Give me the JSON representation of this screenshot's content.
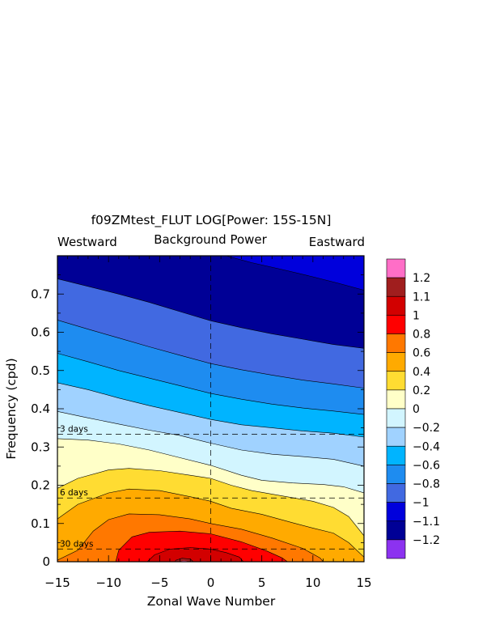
{
  "chart_data": {
    "type": "filled-contour",
    "title": "f09ZMtest_FLUT LOG[Power: 15S-15N]",
    "subtitle_center": "Background Power",
    "subtitle_left": "Westward",
    "subtitle_right": "Eastward",
    "xlabel": "Zonal Wave Number",
    "ylabel": "Frequency (cpd)",
    "xlim": [
      -15,
      15
    ],
    "ylim": [
      0,
      0.8
    ],
    "x_ticks": [
      -15,
      -10,
      -5,
      0,
      5,
      10,
      15
    ],
    "x_tick_labels": [
      "−15",
      "−10",
      "−5",
      "0",
      "5",
      "10",
      "15"
    ],
    "y_ticks": [
      0,
      0.1,
      0.2,
      0.3,
      0.4,
      0.5,
      0.6,
      0.7
    ],
    "y_tick_labels": [
      "0",
      "0.1",
      "0.2",
      "0.3",
      "0.4",
      "0.5",
      "0.6",
      "0.7"
    ],
    "period_lines": [
      {
        "label": "3 days",
        "freq": 0.3333
      },
      {
        "label": "6 days",
        "freq": 0.1667
      },
      {
        "label": "30 days",
        "freq": 0.0333
      }
    ],
    "vertical_line_x": 0,
    "contour_boundaries": [
      {
        "level": 1.1,
        "points": [
          [
            -3.5,
            0
          ],
          [
            -3.4,
            0.004
          ],
          [
            -2.8,
            0.009
          ],
          [
            -2.0,
            0.007
          ],
          [
            -1.7,
            0
          ]
        ]
      },
      {
        "level": 1.0,
        "points": [
          [
            -6.2,
            0
          ],
          [
            -5.5,
            0.018
          ],
          [
            -4.0,
            0.033
          ],
          [
            -2.0,
            0.037
          ],
          [
            0,
            0.033
          ],
          [
            1.5,
            0.024
          ],
          [
            2.8,
            0.012
          ],
          [
            3.2,
            0
          ]
        ]
      },
      {
        "level": 0.8,
        "points": [
          [
            -9.3,
            0
          ],
          [
            -9.0,
            0.03
          ],
          [
            -7.7,
            0.065
          ],
          [
            -6.0,
            0.077
          ],
          [
            -3.0,
            0.08
          ],
          [
            0,
            0.073
          ],
          [
            3.0,
            0.052
          ],
          [
            5.5,
            0.028
          ],
          [
            7.0,
            0.01
          ],
          [
            7.5,
            0
          ]
        ]
      },
      {
        "level": 0.6,
        "points": [
          [
            -15,
            0.004
          ],
          [
            -13.0,
            0.03
          ],
          [
            -11.5,
            0.08
          ],
          [
            -10.0,
            0.11
          ],
          [
            -8.0,
            0.125
          ],
          [
            -5.0,
            0.123
          ],
          [
            -2.0,
            0.112
          ],
          [
            0,
            0.1
          ],
          [
            3.0,
            0.085
          ],
          [
            6.0,
            0.062
          ],
          [
            9.0,
            0.035
          ],
          [
            10.7,
            0.01
          ],
          [
            11.0,
            0
          ]
        ]
      },
      {
        "level": 0.4,
        "points": [
          [
            -15,
            0.112
          ],
          [
            -13.0,
            0.15
          ],
          [
            -10.0,
            0.18
          ],
          [
            -8.0,
            0.19
          ],
          [
            -5.0,
            0.186
          ],
          [
            -2.0,
            0.17
          ],
          [
            0,
            0.158
          ],
          [
            2.0,
            0.14
          ],
          [
            5.0,
            0.124
          ],
          [
            8.0,
            0.102
          ],
          [
            10.0,
            0.088
          ],
          [
            12.0,
            0.075
          ],
          [
            13.5,
            0.05
          ],
          [
            15,
            0.012
          ]
        ]
      },
      {
        "level": 0.2,
        "points": [
          [
            -15,
            0.192
          ],
          [
            -13.0,
            0.218
          ],
          [
            -10.0,
            0.24
          ],
          [
            -8.0,
            0.244
          ],
          [
            -5.0,
            0.238
          ],
          [
            -2.0,
            0.226
          ],
          [
            0,
            0.218
          ],
          [
            2.0,
            0.2
          ],
          [
            4.0,
            0.186
          ],
          [
            7.0,
            0.172
          ],
          [
            10.0,
            0.158
          ],
          [
            12.0,
            0.142
          ],
          [
            13.5,
            0.118
          ],
          [
            15,
            0.068
          ]
        ]
      },
      {
        "level": 0.0,
        "points": [
          [
            -15,
            0.322
          ],
          [
            -12.0,
            0.318
          ],
          [
            -9.0,
            0.308
          ],
          [
            -6.0,
            0.292
          ],
          [
            -3.0,
            0.272
          ],
          [
            0,
            0.252
          ],
          [
            3.0,
            0.226
          ],
          [
            5.0,
            0.213
          ],
          [
            8.0,
            0.206
          ],
          [
            11.0,
            0.202
          ],
          [
            13.0,
            0.196
          ],
          [
            15,
            0.18
          ]
        ]
      },
      {
        "level": -0.2,
        "points": [
          [
            -15,
            0.393
          ],
          [
            -12.0,
            0.376
          ],
          [
            -9.0,
            0.36
          ],
          [
            -6.0,
            0.344
          ],
          [
            -3.0,
            0.33
          ],
          [
            0,
            0.31
          ],
          [
            3.0,
            0.292
          ],
          [
            6.0,
            0.281
          ],
          [
            9.0,
            0.275
          ],
          [
            12.0,
            0.268
          ],
          [
            15,
            0.25
          ]
        ]
      },
      {
        "level": -0.4,
        "points": [
          [
            -15,
            0.468
          ],
          [
            -12.0,
            0.45
          ],
          [
            -9.0,
            0.428
          ],
          [
            -6.0,
            0.408
          ],
          [
            -3.0,
            0.39
          ],
          [
            0,
            0.372
          ],
          [
            3.0,
            0.358
          ],
          [
            6.0,
            0.35
          ],
          [
            9.0,
            0.342
          ],
          [
            12.0,
            0.336
          ],
          [
            15,
            0.326
          ]
        ]
      },
      {
        "level": -0.6,
        "points": [
          [
            -15,
            0.545
          ],
          [
            -12.0,
            0.523
          ],
          [
            -9.0,
            0.5
          ],
          [
            -6.0,
            0.48
          ],
          [
            -3.0,
            0.46
          ],
          [
            0,
            0.44
          ],
          [
            3.0,
            0.425
          ],
          [
            6.0,
            0.412
          ],
          [
            9.0,
            0.402
          ],
          [
            12.0,
            0.394
          ],
          [
            15,
            0.385
          ]
        ]
      },
      {
        "level": -0.8,
        "points": [
          [
            -15,
            0.632
          ],
          [
            -12.0,
            0.608
          ],
          [
            -9.0,
            0.585
          ],
          [
            -6.0,
            0.562
          ],
          [
            -3.0,
            0.54
          ],
          [
            0,
            0.518
          ],
          [
            3.0,
            0.502
          ],
          [
            6.0,
            0.488
          ],
          [
            9.0,
            0.475
          ],
          [
            12.0,
            0.465
          ],
          [
            15,
            0.454
          ]
        ]
      },
      {
        "level": -1.0,
        "points": [
          [
            -15,
            0.74
          ],
          [
            -12.0,
            0.72
          ],
          [
            -9.0,
            0.7
          ],
          [
            -6.0,
            0.678
          ],
          [
            -3.0,
            0.654
          ],
          [
            0,
            0.63
          ],
          [
            3.0,
            0.612
          ],
          [
            6.0,
            0.596
          ],
          [
            9.0,
            0.582
          ],
          [
            12.0,
            0.568
          ],
          [
            15,
            0.558
          ]
        ]
      },
      {
        "level": -1.1,
        "points": [
          [
            1.5,
            0.8
          ],
          [
            4.0,
            0.782
          ],
          [
            7.0,
            0.764
          ],
          [
            10.0,
            0.745
          ],
          [
            12.5,
            0.728
          ],
          [
            15,
            0.71
          ]
        ]
      }
    ],
    "colorbar": {
      "labels": [
        "1.2",
        "1.1",
        "1",
        "0.8",
        "0.6",
        "0.4",
        "0.2",
        "0",
        "−0.2",
        "−0.4",
        "−0.6",
        "−0.8",
        "−1",
        "−1.1",
        "−1.2"
      ],
      "colors_top_to_bottom": [
        "#ff6ec7",
        "#a01e1e",
        "#d20000",
        "#ff0000",
        "#ff7800",
        "#ffaa00",
        "#ffdc32",
        "#ffffc8",
        "#d2f5ff",
        "#a0d2ff",
        "#00b4ff",
        "#1e8cf0",
        "#4169e1",
        "#0000dc",
        "#000096",
        "#8c32f0"
      ]
    }
  }
}
